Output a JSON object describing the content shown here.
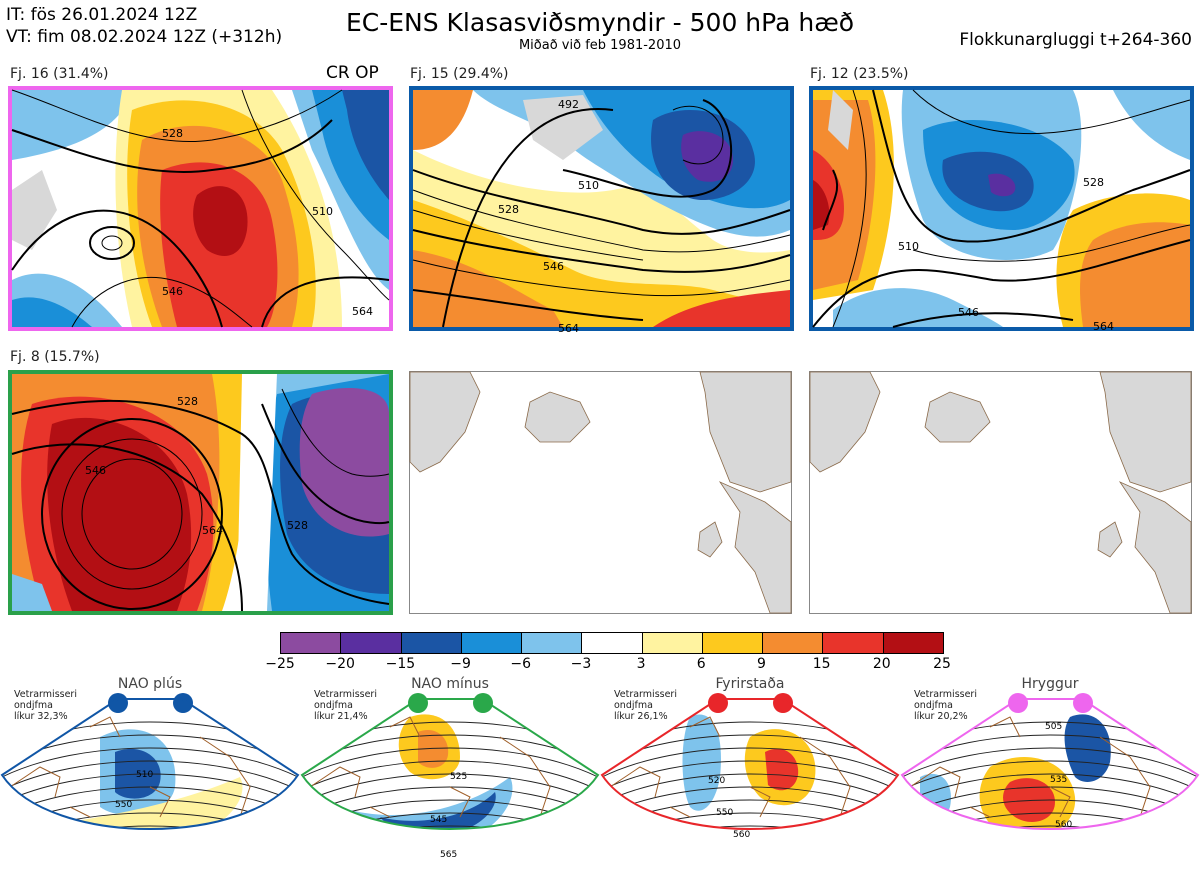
{
  "header": {
    "init_time": "IT: fös 26.01.2024 12Z",
    "valid_time": "VT: fim 08.02.2024 12Z  (+312h)",
    "title": "EC-ENS Klasasviðsmyndir - 500 hPa hæð",
    "subtitle": "Miðað við feb 1981-2010",
    "window": "Flokkunargluggi t+264-360"
  },
  "panels": [
    {
      "label": "Fj. 16 (31.4%)",
      "badge": "CR OP",
      "border_color": "#ee66ee",
      "contours": [
        "528",
        "546",
        "564",
        "510"
      ]
    },
    {
      "label": "Fj. 15 (29.4%)",
      "badge": "",
      "border_color": "#0a5aa8",
      "contours": [
        "492",
        "510",
        "528",
        "546",
        "564"
      ]
    },
    {
      "label": "Fj. 12 (23.5%)",
      "badge": "",
      "border_color": "#0a5aa8",
      "contours": [
        "510",
        "528",
        "546",
        "564"
      ]
    },
    {
      "label": "Fj. 8 (15.7%)",
      "badge": "",
      "border_color": "#2aa04a",
      "contours": [
        "528",
        "546",
        "564",
        "528"
      ]
    }
  ],
  "colorbar": {
    "ticks": [
      "−25",
      "−20",
      "−15",
      "−9",
      "−6",
      "−3",
      "3",
      "6",
      "9",
      "15",
      "20",
      "25"
    ],
    "colors": [
      "#8c4ba0",
      "#5a2fa0",
      "#1b55a5",
      "#1a8fd8",
      "#7ec3ec",
      "#ffffff",
      "#fff3a0",
      "#fdc91e",
      "#f48c30",
      "#e8342b",
      "#b30f14"
    ]
  },
  "regimes": [
    {
      "name": "NAO plús",
      "note": [
        "Vetrarmisseri",
        "ondjfma",
        "líkur 32,3%"
      ],
      "color": "#1056a6",
      "contours": [
        "510",
        "550"
      ]
    },
    {
      "name": "NAO mínus",
      "note": [
        "Vetrarmisseri",
        "ondjfma",
        "líkur 21,4%"
      ],
      "color": "#2aa84a",
      "contours": [
        "525",
        "545",
        "565"
      ]
    },
    {
      "name": "Fyrirstaða",
      "note": [
        "Vetrarmisseri",
        "ondjfma",
        "líkur 26,1%"
      ],
      "color": "#e8262a",
      "contours": [
        "520",
        "550",
        "560"
      ]
    },
    {
      "name": "Hryggur",
      "note": [
        "Vetrarmisseri",
        "ondjfma",
        "líkur 20,2%"
      ],
      "color": "#ee66ee",
      "contours": [
        "505",
        "535",
        "560"
      ]
    }
  ]
}
